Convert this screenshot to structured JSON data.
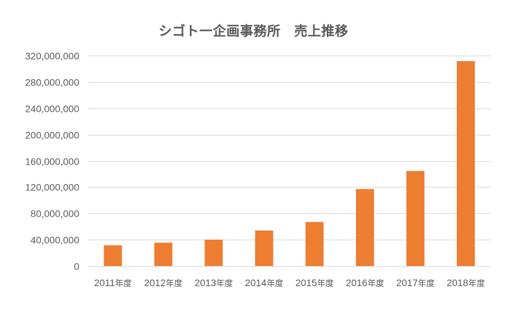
{
  "chart_data": {
    "type": "bar",
    "title": "シゴト一企画事務所　売上推移",
    "xlabel": "",
    "ylabel": "",
    "categories": [
      "2011年度",
      "2012年度",
      "2013年度",
      "2014年度",
      "2015年度",
      "2016年度",
      "2017年度",
      "2018年度"
    ],
    "category_years": [
      "2011",
      "2012",
      "2013",
      "2014",
      "2015",
      "2016",
      "2017",
      "2018"
    ],
    "category_suffix": "年度",
    "values": [
      31500000,
      35500000,
      40000000,
      54000000,
      67000000,
      117000000,
      144500000,
      311500000
    ],
    "ylim": [
      0,
      320000000
    ],
    "yticks": [
      0,
      40000000,
      80000000,
      120000000,
      160000000,
      200000000,
      240000000,
      280000000,
      320000000
    ],
    "ytick_labels": [
      "0",
      "40,000,000",
      "80,000,000",
      "120,000,000",
      "160,000,000",
      "200,000,000",
      "240,000,000",
      "280,000,000",
      "320,000,000"
    ],
    "grid": true,
    "legend": "none",
    "colors": {
      "bar": "#ed7d31",
      "grid": "#d9d9d9",
      "text": "#595959"
    }
  }
}
